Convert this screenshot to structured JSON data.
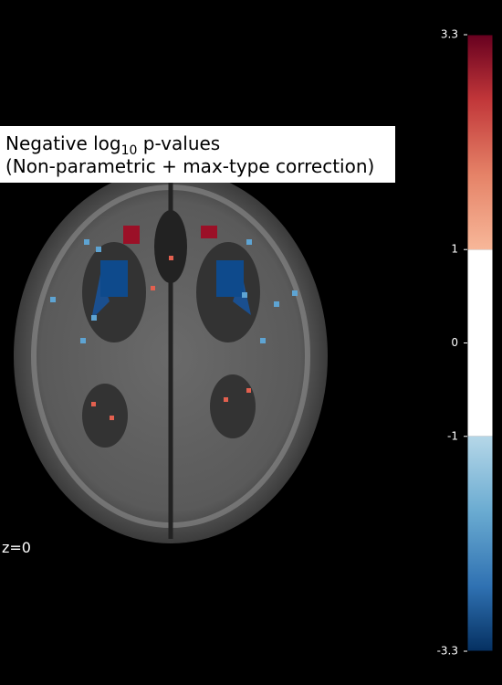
{
  "chart_data": {
    "type": "stat-map",
    "title": {
      "line1": {
        "before": "Negative log",
        "subscript": "10",
        "after": " p-values"
      },
      "line2": "(Non-parametric + max-type correction)"
    },
    "cut_label": "z=0",
    "colorbar": {
      "ylim": [
        -3.3,
        3.3
      ],
      "yticks": [
        -3.3,
        -1,
        0,
        1,
        3.3
      ],
      "threshold": 1
    }
  }
}
